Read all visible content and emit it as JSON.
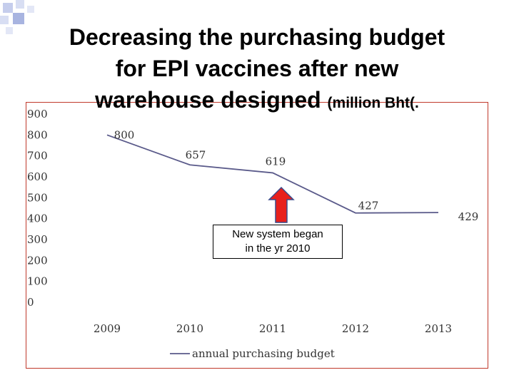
{
  "slide": {
    "title_line1": "Decreasing  the purchasing budget",
    "title_line2": "for EPI vaccines after new",
    "title_line3": "warehouse designed",
    "title_unit": "(million Bht(."
  },
  "callout": {
    "line1": "New system began",
    "line2": "in the yr 2010",
    "arrow_color": "#e8201c",
    "arrow_outline": "#3a4a8a"
  },
  "colors": {
    "series_line": "#5a5a8a",
    "frame_border": "#c0392b",
    "deco_square": "#a8b4e0"
  },
  "chart_data": {
    "type": "line",
    "categories": [
      "2009",
      "2010",
      "2011",
      "2012",
      "2013"
    ],
    "series": [
      {
        "name": "annual purchasing budget",
        "values": [
          800,
          657,
          619,
          427,
          429
        ]
      }
    ],
    "data_labels": [
      "800",
      "657",
      "619",
      "427",
      "429"
    ],
    "ylim": [
      0,
      900
    ],
    "yticks": [
      "0",
      "100",
      "200",
      "300",
      "400",
      "500",
      "600",
      "700",
      "800",
      "900"
    ],
    "grid": false,
    "legend_position": "bottom-left"
  }
}
